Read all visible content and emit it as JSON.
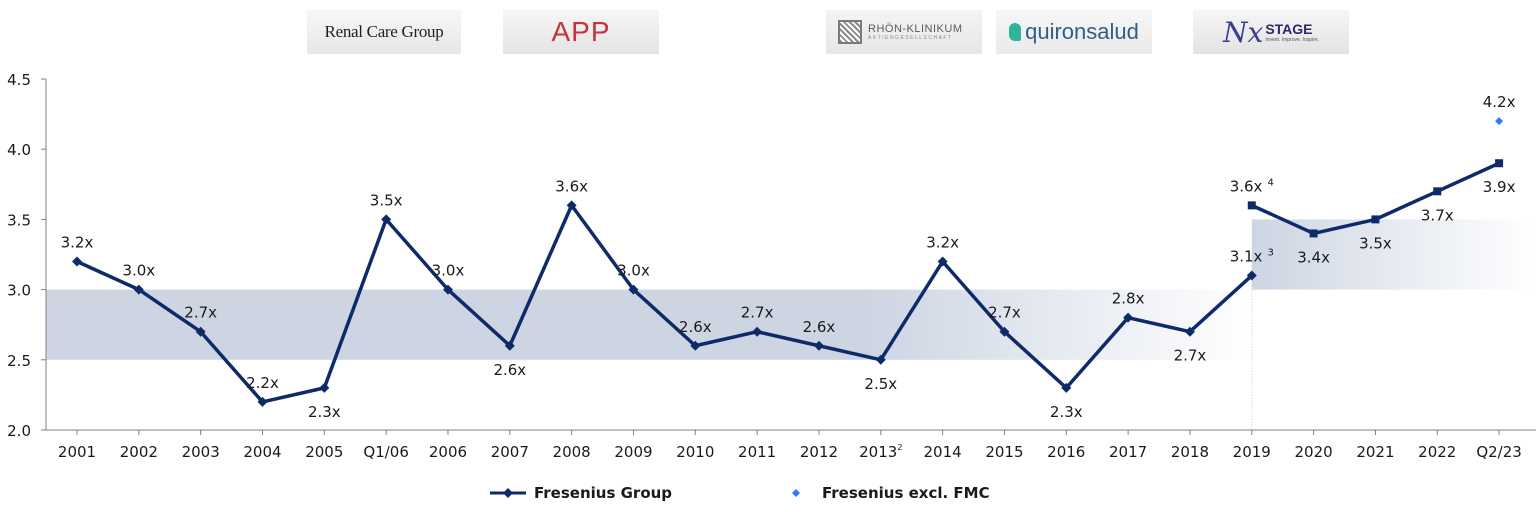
{
  "logos": {
    "renal_care_group": "Renal Care Group",
    "app": "APP",
    "rhon_klinikum": "RHÖN-KLINIKUM",
    "rhon_klinikum_sub": "AKTIENGESELLSCHAFT",
    "quironsalud": "quironsalud",
    "nxstage_name": "STAGE",
    "nxstage_tagline": "Invent. Improve. Inspire."
  },
  "colors": {
    "group_line": "#0f2a68",
    "excl_marker": "#2e7bff",
    "band": "#cdd5e3"
  },
  "chart_data": {
    "type": "line",
    "categories": [
      "2001",
      "2002",
      "2003",
      "2004",
      "2005",
      "Q1/06",
      "2006",
      "2007",
      "2008",
      "2009",
      "2010",
      "2011",
      "2012",
      "2013",
      "2014",
      "2015",
      "2016",
      "2017",
      "2018",
      "2019",
      "2020",
      "2021",
      "2022",
      "Q2/23"
    ],
    "category_superscripts": {
      "2013": "2"
    },
    "ylim": [
      2.0,
      4.5
    ],
    "yticks": [
      "2.0",
      "2.5",
      "3.0",
      "3.5",
      "4.0",
      "4.5"
    ],
    "series": [
      {
        "name": "Fresenius Group",
        "segments": [
          {
            "from": "2001",
            "to": "2019",
            "values": [
              3.2,
              3.0,
              2.7,
              2.2,
              2.3,
              3.5,
              3.0,
              2.6,
              3.6,
              3.0,
              2.6,
              2.7,
              2.6,
              2.5,
              3.2,
              2.7,
              2.3,
              2.8,
              2.7,
              3.1
            ],
            "marker": "diamond"
          },
          {
            "from": "2019",
            "to": "Q2/23",
            "values": [
              3.6,
              3.4,
              3.5,
              3.7,
              3.9
            ],
            "marker": "square"
          }
        ],
        "labels": [
          {
            "x": "2001",
            "text": "3.2x",
            "pos": "above"
          },
          {
            "x": "2002",
            "text": "3.0x",
            "pos": "above"
          },
          {
            "x": "2003",
            "text": "2.7x",
            "pos": "above"
          },
          {
            "x": "2004",
            "text": "2.2x",
            "pos": "above"
          },
          {
            "x": "2005",
            "text": "2.3x",
            "pos": "below"
          },
          {
            "x": "Q1/06",
            "text": "3.5x",
            "pos": "above"
          },
          {
            "x": "2006",
            "text": "3.0x",
            "pos": "above"
          },
          {
            "x": "2007",
            "text": "2.6x",
            "pos": "below"
          },
          {
            "x": "2008",
            "text": "3.6x",
            "pos": "above"
          },
          {
            "x": "2009",
            "text": "3.0x",
            "pos": "above"
          },
          {
            "x": "2010",
            "text": "2.6x",
            "pos": "above"
          },
          {
            "x": "2011",
            "text": "2.7x",
            "pos": "above"
          },
          {
            "x": "2012",
            "text": "2.6x",
            "pos": "above"
          },
          {
            "x": "2013",
            "text": "2.5x",
            "pos": "below"
          },
          {
            "x": "2014",
            "text": "3.2x",
            "pos": "above"
          },
          {
            "x": "2015",
            "text": "2.7x",
            "pos": "above"
          },
          {
            "x": "2016",
            "text": "2.3x",
            "pos": "below"
          },
          {
            "x": "2017",
            "text": "2.8x",
            "pos": "above"
          },
          {
            "x": "2018",
            "text": "2.7x",
            "pos": "below"
          },
          {
            "x": "2019",
            "text": "3.1x",
            "sup": "3",
            "pos": "above"
          },
          {
            "x": "2019",
            "text": "3.6x",
            "sup": "4",
            "pos": "above",
            "value": 3.6
          },
          {
            "x": "2020",
            "text": "3.4x",
            "pos": "below"
          },
          {
            "x": "2021",
            "text": "3.5x",
            "pos": "below"
          },
          {
            "x": "2022",
            "text": "3.7x",
            "pos": "below"
          },
          {
            "x": "Q2/23",
            "text": "3.9x",
            "pos": "below"
          }
        ]
      },
      {
        "name": "Fresenius excl. FMC",
        "points": [
          {
            "x": "Q2/23",
            "value": 4.2
          }
        ],
        "labels": [
          {
            "x": "Q2/23",
            "text": "4.2x",
            "pos": "above"
          }
        ]
      }
    ],
    "target_bands": [
      {
        "from": "2001",
        "to": "2019",
        "ymin": 2.5,
        "ymax": 3.0
      },
      {
        "from": "2019",
        "to": "Q2/23",
        "ymin": 3.0,
        "ymax": 3.5
      }
    ],
    "grid": false,
    "legend": "bottom-center"
  }
}
